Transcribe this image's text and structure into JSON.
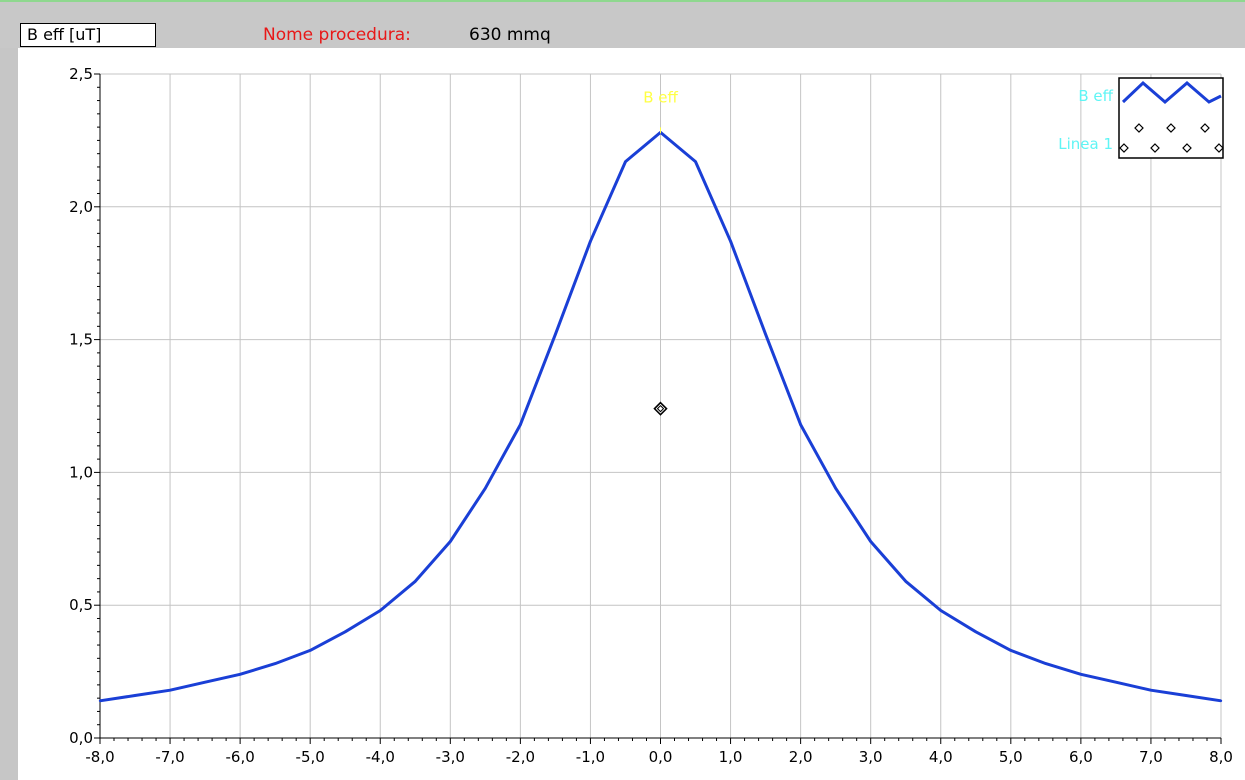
{
  "header": {
    "unit_label": "B eff [uT]",
    "procedure_label": "Nome procedura:",
    "procedure_value": "630 mmq"
  },
  "chart_data": {
    "type": "line",
    "xlim": [
      -8.0,
      8.0
    ],
    "ylim": [
      0.0,
      2.5
    ],
    "grid": true,
    "x_ticks": [
      "-8,0",
      "-7,0",
      "-6,0",
      "-5,0",
      "-4,0",
      "-3,0",
      "-2,0",
      "-1,0",
      "0,0",
      "1,0",
      "2,0",
      "3,0",
      "4,0",
      "5,0",
      "6,0",
      "7,0",
      "8,0"
    ],
    "y_ticks": [
      "0,0",
      "0,5",
      "1,0",
      "1,5",
      "2,0",
      "2,5"
    ],
    "legend_position": "top-right",
    "series": [
      {
        "name": "B eff",
        "color": "#1a3fd6",
        "style": "line",
        "x": [
          -8.0,
          -7.5,
          -7.0,
          -6.5,
          -6.0,
          -5.5,
          -5.0,
          -4.5,
          -4.0,
          -3.5,
          -3.0,
          -2.5,
          -2.0,
          -1.5,
          -1.0,
          -0.5,
          0.0,
          0.5,
          1.0,
          1.5,
          2.0,
          2.5,
          3.0,
          3.5,
          4.0,
          4.5,
          5.0,
          5.5,
          6.0,
          6.5,
          7.0,
          7.5,
          8.0
        ],
        "y": [
          0.14,
          0.16,
          0.18,
          0.21,
          0.24,
          0.28,
          0.33,
          0.4,
          0.48,
          0.59,
          0.74,
          0.94,
          1.18,
          1.52,
          1.87,
          2.17,
          2.28,
          2.17,
          1.87,
          1.52,
          1.18,
          0.94,
          0.74,
          0.59,
          0.48,
          0.4,
          0.33,
          0.28,
          0.24,
          0.21,
          0.18,
          0.16,
          0.14
        ],
        "peak_label": "B eff",
        "peak_label_color": "#ffff44"
      },
      {
        "name": "Linea 1",
        "style": "markers",
        "marker": "diamond",
        "x": [
          0.0
        ],
        "y": [
          1.24
        ]
      }
    ]
  }
}
